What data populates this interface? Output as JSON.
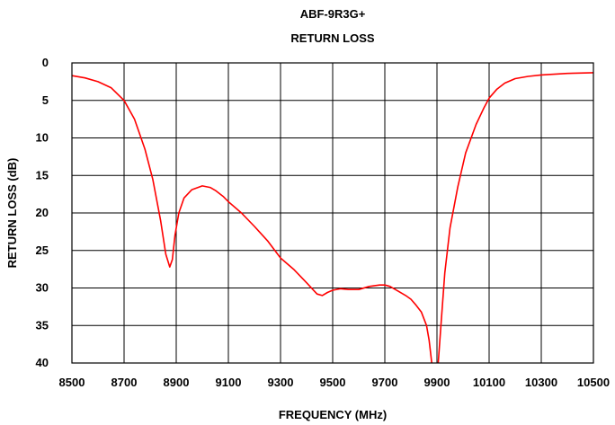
{
  "chart_data": {
    "type": "line",
    "title": "ABF-9R3G+",
    "subtitle": "RETURN LOSS",
    "xlabel": "FREQUENCY (MHz)",
    "ylabel": "RETURN LOSS (dB)",
    "xlim": [
      8500,
      10500
    ],
    "ylim": [
      0,
      40
    ],
    "y_inverted": true,
    "grid": true,
    "x_ticks": [
      8500,
      8700,
      8900,
      9100,
      9300,
      9500,
      9700,
      9900,
      10100,
      10300,
      10500
    ],
    "x_tick_labels": [
      "8500",
      "8700",
      "8900",
      "9100",
      "9300",
      "9500",
      "9700",
      "9900",
      "10100",
      "10300",
      "10500"
    ],
    "y_ticks": [
      0,
      5,
      10,
      15,
      20,
      25,
      30,
      35,
      40
    ],
    "y_tick_labels": [
      "0",
      "5",
      "10",
      "15",
      "20",
      "25",
      "30",
      "35",
      "40"
    ],
    "series": [
      {
        "color": "#ff0000",
        "x": [
          8500,
          8550,
          8600,
          8650,
          8700,
          8740,
          8780,
          8810,
          8840,
          8860,
          8875,
          8885,
          8895,
          8910,
          8930,
          8960,
          9000,
          9030,
          9050,
          9080,
          9100,
          9150,
          9200,
          9250,
          9300,
          9350,
          9400,
          9440,
          9460,
          9480,
          9500,
          9530,
          9560,
          9600,
          9640,
          9680,
          9700,
          9720,
          9750,
          9780,
          9800,
          9820,
          9840,
          9860,
          9870,
          9880
        ],
        "y": [
          1.7,
          2.0,
          2.5,
          3.3,
          5.0,
          7.5,
          11.5,
          15.5,
          21.0,
          25.5,
          27.2,
          26.2,
          23.0,
          20.0,
          18.0,
          16.9,
          16.4,
          16.6,
          17.0,
          17.8,
          18.5,
          20.0,
          21.8,
          23.7,
          26.0,
          27.5,
          29.3,
          30.8,
          31.0,
          30.6,
          30.3,
          30.1,
          30.2,
          30.2,
          29.8,
          29.6,
          29.6,
          29.8,
          30.4,
          31.0,
          31.5,
          32.3,
          33.2,
          35.0,
          37.0,
          40.0
        ]
      },
      {
        "color": "#ff0000",
        "x": [
          9905,
          9915,
          9930,
          9950,
          9980,
          10010,
          10050,
          10080,
          10100,
          10130,
          10160,
          10200,
          10250,
          10300,
          10400,
          10500
        ],
        "y": [
          40.0,
          35.0,
          28.0,
          22.0,
          16.5,
          12.0,
          8.2,
          6.0,
          4.7,
          3.5,
          2.7,
          2.1,
          1.8,
          1.6,
          1.4,
          1.3
        ]
      }
    ]
  }
}
